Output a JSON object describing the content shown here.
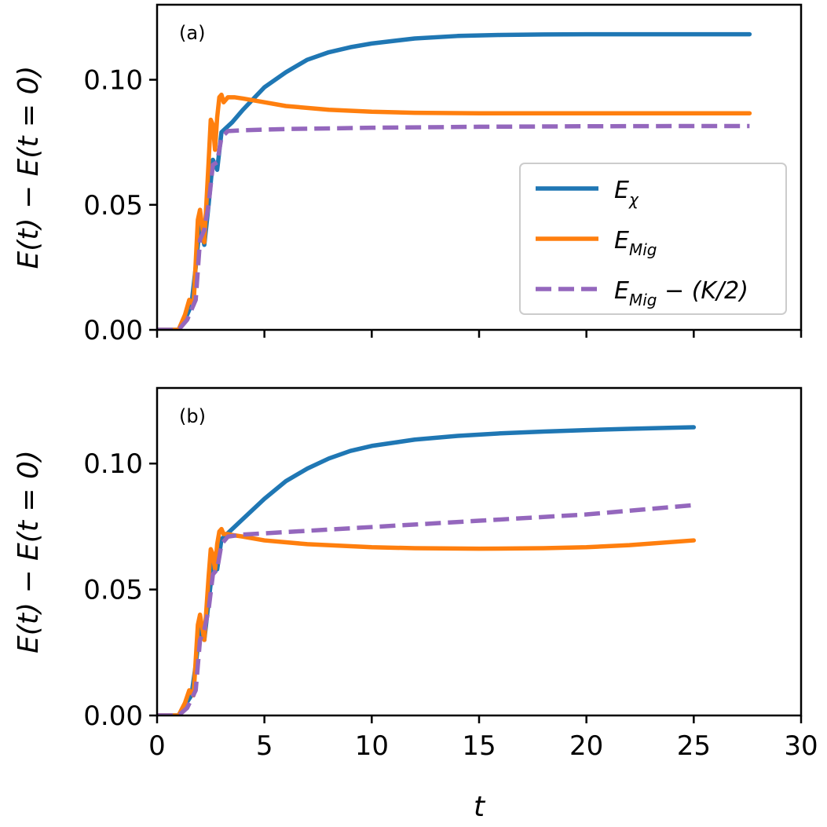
{
  "chart_data": [
    {
      "type": "line",
      "panel_label": "(a)",
      "title": "",
      "xlabel": "",
      "ylabel": "E(t) − E(t = 0)",
      "xlim": [
        0,
        30
      ],
      "ylim": [
        0,
        0.13
      ],
      "xticks": [
        0,
        5,
        10,
        15,
        20,
        25,
        30
      ],
      "xtick_labels_visible": false,
      "yticks": [
        0.0,
        0.05,
        0.1
      ],
      "ytick_labels": [
        "0.00",
        "0.05",
        "0.10"
      ],
      "legend": {
        "placement": "center-right",
        "entries": [
          {
            "name": "E_chi",
            "base": "E",
            "sub": "χ",
            "suffix": ""
          },
          {
            "name": "E_Mig",
            "base": "E",
            "sub": "Mig",
            "suffix": ""
          },
          {
            "name": "E_Mig - (K/2)",
            "base": "E",
            "sub": "Mig",
            "suffix": " − (K/2)"
          }
        ]
      },
      "series": [
        {
          "name": "E_chi",
          "color": "#1f77b4",
          "dash": "solid",
          "x": [
            0,
            1.0,
            1.3,
            1.6,
            1.8,
            2.0,
            2.2,
            2.4,
            2.6,
            2.8,
            3.0,
            3.5,
            4.0,
            5.0,
            6.0,
            7.0,
            8.0,
            9.0,
            10.0,
            12.0,
            14.0,
            16.0,
            18.0,
            20.0,
            22.0,
            24.0,
            26.0,
            27.6
          ],
          "y": [
            0,
            0.0,
            0.004,
            0.01,
            0.025,
            0.043,
            0.034,
            0.05,
            0.068,
            0.064,
            0.079,
            0.083,
            0.088,
            0.097,
            0.103,
            0.108,
            0.111,
            0.113,
            0.1145,
            0.1165,
            0.1175,
            0.1179,
            0.1181,
            0.1182,
            0.1182,
            0.1182,
            0.1182,
            0.1182
          ]
        },
        {
          "name": "E_Mig",
          "color": "#ff7f0e",
          "dash": "solid",
          "x": [
            0,
            1.0,
            1.3,
            1.5,
            1.7,
            1.9,
            2.0,
            2.2,
            2.4,
            2.5,
            2.6,
            2.7,
            2.8,
            2.9,
            3.0,
            3.1,
            3.3,
            3.6,
            4.0,
            5.0,
            6.0,
            8.0,
            10.0,
            12.0,
            15.0,
            20.0,
            25.0,
            27.6
          ],
          "y": [
            0,
            0.0,
            0.006,
            0.012,
            0.01,
            0.044,
            0.048,
            0.035,
            0.067,
            0.084,
            0.082,
            0.072,
            0.085,
            0.093,
            0.094,
            0.091,
            0.093,
            0.093,
            0.0925,
            0.091,
            0.0895,
            0.088,
            0.0872,
            0.0868,
            0.0866,
            0.0866,
            0.0866,
            0.0866
          ]
        },
        {
          "name": "E_Mig - (K/2)",
          "color": "#9467bd",
          "dash": "dashed",
          "x": [
            0,
            1.0,
            1.4,
            1.8,
            2.0,
            2.2,
            2.4,
            2.6,
            2.8,
            3.0,
            3.3,
            4.0,
            6.0,
            10.0,
            15.0,
            20.0,
            25.0,
            27.6
          ],
          "y": [
            0,
            0.0,
            0.004,
            0.012,
            0.036,
            0.04,
            0.05,
            0.066,
            0.067,
            0.077,
            0.0795,
            0.0798,
            0.0803,
            0.0808,
            0.0812,
            0.0814,
            0.0815,
            0.0815
          ]
        }
      ]
    },
    {
      "type": "line",
      "panel_label": "(b)",
      "title": "",
      "xlabel": "t",
      "ylabel": "E(t) − E(t = 0)",
      "xlim": [
        0,
        30
      ],
      "ylim": [
        0,
        0.13
      ],
      "xticks": [
        0,
        5,
        10,
        15,
        20,
        25,
        30
      ],
      "xtick_labels": [
        "0",
        "5",
        "10",
        "15",
        "20",
        "25",
        "30"
      ],
      "xtick_labels_visible": true,
      "yticks": [
        0.0,
        0.05,
        0.1
      ],
      "ytick_labels": [
        "0.00",
        "0.05",
        "0.10"
      ],
      "series": [
        {
          "name": "E_chi",
          "color": "#1f77b4",
          "dash": "solid",
          "x": [
            0,
            1.0,
            1.3,
            1.6,
            1.8,
            2.0,
            2.2,
            2.4,
            2.6,
            2.8,
            3.0,
            3.5,
            4.0,
            5.0,
            6.0,
            7.0,
            8.0,
            9.0,
            10.0,
            12.0,
            14.0,
            16.0,
            18.0,
            20.0,
            22.0,
            24.0,
            25.0
          ],
          "y": [
            0,
            0.0,
            0.004,
            0.008,
            0.02,
            0.035,
            0.03,
            0.045,
            0.06,
            0.058,
            0.07,
            0.074,
            0.078,
            0.086,
            0.093,
            0.098,
            0.102,
            0.105,
            0.107,
            0.1095,
            0.111,
            0.112,
            0.1127,
            0.1133,
            0.1138,
            0.1142,
            0.1144
          ]
        },
        {
          "name": "E_Mig",
          "color": "#ff7f0e",
          "dash": "solid",
          "x": [
            0,
            1.0,
            1.3,
            1.5,
            1.7,
            1.9,
            2.0,
            2.2,
            2.4,
            2.5,
            2.6,
            2.7,
            2.8,
            2.9,
            3.0,
            3.1,
            3.3,
            3.6,
            4.0,
            5.0,
            7.0,
            10.0,
            12.0,
            15.0,
            18.0,
            20.0,
            22.0,
            25.0
          ],
          "y": [
            0,
            0.0,
            0.005,
            0.01,
            0.008,
            0.036,
            0.04,
            0.03,
            0.055,
            0.066,
            0.064,
            0.058,
            0.068,
            0.073,
            0.074,
            0.072,
            0.072,
            0.0715,
            0.071,
            0.0695,
            0.068,
            0.0668,
            0.0664,
            0.0662,
            0.0664,
            0.0668,
            0.0676,
            0.0695
          ]
        },
        {
          "name": "E_Mig - (K/2)",
          "color": "#9467bd",
          "dash": "dashed",
          "x": [
            0,
            1.0,
            1.4,
            1.8,
            2.0,
            2.2,
            2.4,
            2.6,
            2.8,
            3.0,
            3.3,
            4.0,
            6.0,
            10.0,
            15.0,
            20.0,
            25.0
          ],
          "y": [
            0,
            0.0,
            0.003,
            0.01,
            0.03,
            0.034,
            0.042,
            0.056,
            0.058,
            0.068,
            0.071,
            0.0718,
            0.0728,
            0.0748,
            0.0773,
            0.0798,
            0.0835
          ]
        }
      ]
    }
  ]
}
